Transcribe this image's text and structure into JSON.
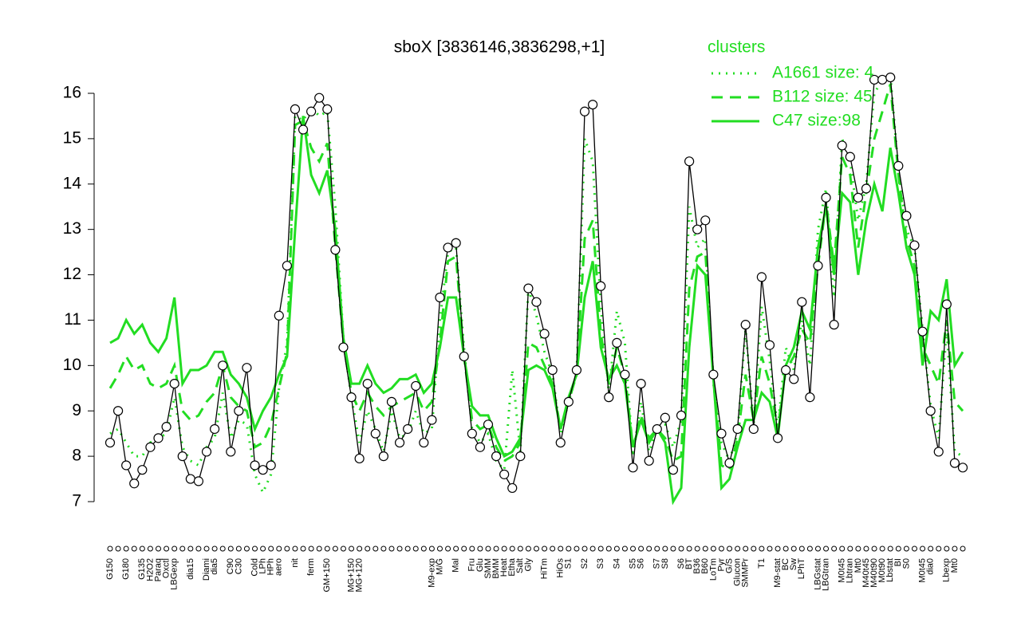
{
  "chart_data": {
    "type": "line",
    "title": "sboX [3836146,3836298,+1]",
    "legend_title": "clusters",
    "legend": "topright",
    "color": "#000000",
    "categories": [
      "G150",
      null,
      "G180",
      null,
      "G135",
      "H2O2",
      "Paraq",
      "Oxctl",
      "LBGexp",
      null,
      "dia15",
      null,
      "Diami",
      "dia5",
      null,
      "C90",
      "C30",
      null,
      "Cold",
      "LPh",
      "HPh",
      "aero",
      null,
      "nit",
      null,
      "ferm",
      null,
      "GM+150",
      null,
      null,
      "MG+150",
      "MG+120",
      null,
      null,
      null,
      null,
      null,
      null,
      null,
      null,
      "M9-exp",
      "M/G",
      null,
      "Mal",
      null,
      "Fru",
      "Glu",
      "SMM",
      "BMM",
      "Heat",
      "Etha",
      "Salt",
      "Gly",
      null,
      "HiTm",
      null,
      "HiOs",
      "S1",
      null,
      "S2",
      null,
      "S3",
      null,
      "S4",
      null,
      "S5",
      "S6",
      null,
      "S7",
      "S8",
      null,
      "S6",
      "BT",
      "B36",
      "B60",
      "LoTm",
      "Pyr",
      "G/S",
      "Glucon",
      "SMMPr",
      null,
      "T1",
      null,
      "M9-stat",
      "BC",
      "Sw",
      "LPhT",
      null,
      "LBGstat",
      "LBGtran",
      null,
      "M0t45",
      "Lbtran",
      "Mt0",
      "M40t45",
      "M40t90",
      "M0t90",
      "Lbstat",
      "BI",
      "S0",
      null,
      "M0t45",
      "dia0",
      null,
      "Lbexp",
      "Mt0",
      null
    ],
    "values": [
      8.3,
      9.0,
      7.8,
      7.4,
      7.7,
      8.2,
      8.4,
      8.65,
      9.6,
      8.0,
      7.5,
      7.45,
      8.1,
      8.6,
      10.0,
      8.1,
      9.0,
      9.95,
      7.8,
      7.7,
      7.8,
      11.1,
      12.2,
      15.65,
      15.2,
      15.6,
      15.9,
      15.65,
      12.55,
      10.4,
      9.3,
      7.95,
      9.6,
      8.5,
      8.0,
      9.2,
      8.3,
      8.6,
      9.55,
      8.3,
      8.8,
      11.5,
      12.6,
      12.7,
      10.2,
      8.5,
      8.2,
      8.7,
      8.0,
      7.6,
      7.3,
      8.0,
      11.7,
      11.4,
      10.7,
      9.9,
      8.3,
      9.2,
      9.9,
      15.6,
      15.75,
      11.75,
      9.3,
      10.5,
      9.8,
      7.75,
      9.6,
      7.9,
      8.6,
      8.85,
      7.7,
      8.9,
      14.5,
      13.0,
      13.2,
      9.8,
      8.5,
      7.85,
      8.6,
      10.9,
      8.6,
      11.95,
      10.45,
      8.4,
      9.9,
      9.7,
      11.4,
      9.3,
      12.2,
      13.7,
      10.9,
      14.85,
      14.6,
      13.7,
      13.9,
      16.3,
      16.3,
      16.35,
      14.4,
      13.3,
      12.65,
      10.75,
      9.0,
      8.1,
      11.35,
      7.85,
      7.75
    ],
    "series": [
      {
        "name": "A1661 size: 4",
        "color": "#22dd22",
        "style": "dotted",
        "values": [
          8.5,
          8.6,
          8.3,
          8.0,
          8.0,
          8.3,
          8.4,
          8.5,
          9.3,
          8.2,
          7.9,
          7.8,
          8.2,
          8.4,
          9.4,
          8.4,
          8.8,
          8.7,
          7.6,
          7.2,
          7.6,
          9.5,
          10.5,
          15.5,
          15.4,
          15.7,
          15.5,
          15.6,
          13.5,
          10.6,
          9.3,
          8.3,
          9.0,
          8.6,
          8.1,
          9.0,
          8.4,
          8.5,
          9.0,
          8.5,
          8.6,
          11.0,
          12.5,
          12.6,
          10.4,
          8.6,
          8.3,
          8.5,
          7.9,
          7.7,
          9.9,
          8.1,
          11.7,
          11.1,
          10.3,
          9.8,
          8.5,
          9.2,
          9.8,
          15.0,
          14.5,
          11.3,
          9.4,
          11.2,
          10.5,
          8.0,
          9.2,
          8.1,
          8.6,
          8.7,
          8.2,
          8.8,
          13.5,
          12.6,
          12.8,
          9.6,
          8.3,
          7.9,
          8.5,
          10.8,
          8.7,
          11.3,
          10.1,
          8.6,
          10.4,
          9.9,
          11.0,
          10.0,
          13.0,
          13.9,
          11.5,
          15.0,
          14.5,
          13.2,
          14.0,
          16.0,
          16.3,
          16.4,
          14.3,
          13.0,
          12.6,
          10.8,
          9.1,
          8.4,
          10.8,
          8.1,
          8.0
        ]
      },
      {
        "name": "B112 size: 45",
        "color": "#22dd22",
        "style": "dashed",
        "values": [
          9.5,
          9.8,
          10.2,
          9.9,
          10.0,
          9.6,
          9.5,
          9.6,
          10.0,
          9.0,
          8.8,
          8.9,
          9.2,
          9.4,
          10.0,
          9.3,
          9.1,
          9.0,
          8.2,
          8.3,
          8.7,
          9.5,
          10.3,
          15.3,
          15.4,
          14.8,
          14.5,
          14.9,
          12.6,
          10.5,
          9.4,
          9.0,
          9.4,
          9.1,
          8.9,
          9.1,
          9.2,
          9.3,
          9.4,
          9.0,
          9.2,
          10.5,
          12.3,
          12.4,
          10.2,
          8.8,
          8.6,
          8.7,
          8.2,
          7.9,
          8.0,
          8.3,
          10.5,
          10.4,
          10.0,
          9.6,
          8.6,
          9.2,
          9.8,
          12.8,
          13.2,
          10.7,
          9.6,
          10.4,
          9.8,
          8.2,
          8.9,
          8.4,
          8.6,
          8.4,
          7.9,
          8.0,
          11.7,
          12.4,
          12.5,
          9.7,
          7.8,
          7.7,
          8.4,
          9.8,
          8.8,
          10.2,
          9.6,
          8.6,
          9.9,
          10.2,
          10.8,
          10.5,
          12.2,
          13.6,
          12.2,
          14.6,
          14.2,
          12.6,
          13.8,
          15.0,
          15.6,
          16.2,
          14.2,
          12.8,
          12.2,
          10.4,
          10.0,
          9.6,
          11.0,
          9.2,
          9.0
        ]
      },
      {
        "name": "C47 size:98",
        "color": "#22dd22",
        "style": "solid",
        "values": [
          10.5,
          10.6,
          11.0,
          10.7,
          10.9,
          10.5,
          10.3,
          10.6,
          11.5,
          9.6,
          9.9,
          9.9,
          10.0,
          10.3,
          10.3,
          9.8,
          9.6,
          9.3,
          8.6,
          9.0,
          9.3,
          9.8,
          10.2,
          13.0,
          15.5,
          14.2,
          13.8,
          14.3,
          13.0,
          10.6,
          9.6,
          9.6,
          10.0,
          9.6,
          9.4,
          9.5,
          9.7,
          9.7,
          9.8,
          9.4,
          9.6,
          10.4,
          11.5,
          11.5,
          10.2,
          9.1,
          8.9,
          8.9,
          8.4,
          8.0,
          8.1,
          8.4,
          9.9,
          10.0,
          9.9,
          9.5,
          8.6,
          9.3,
          9.8,
          11.5,
          12.3,
          10.4,
          9.7,
          10.0,
          9.6,
          8.2,
          8.8,
          8.3,
          8.6,
          8.3,
          7.0,
          7.3,
          10.4,
          12.2,
          12.0,
          9.7,
          7.3,
          7.5,
          8.2,
          8.8,
          8.8,
          9.4,
          9.2,
          8.4,
          10.0,
          10.4,
          11.2,
          10.8,
          12.6,
          13.5,
          12.0,
          13.8,
          13.6,
          12.0,
          13.2,
          14.0,
          13.4,
          14.8,
          13.8,
          12.6,
          12.0,
          10.0,
          11.2,
          11.0,
          11.9,
          10.0,
          10.3
        ]
      }
    ],
    "ylim": [
      7,
      16
    ],
    "yticks": [
      7,
      8,
      9,
      10,
      11,
      12,
      13,
      14,
      15,
      16
    ]
  }
}
